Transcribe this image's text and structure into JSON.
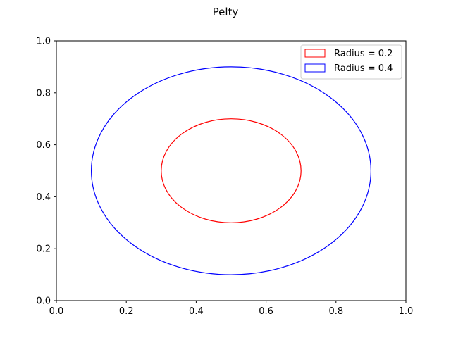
{
  "chart_data": {
    "type": "scatter",
    "title": "Pelty",
    "xlabel": "",
    "ylabel": "",
    "xlim": [
      0.0,
      1.0
    ],
    "ylim": [
      0.0,
      1.0
    ],
    "x_ticks": [
      "0.0",
      "0.2",
      "0.4",
      "0.6",
      "0.8",
      "1.0"
    ],
    "y_ticks": [
      "0.0",
      "0.2",
      "0.4",
      "0.6",
      "0.8",
      "1.0"
    ],
    "grid": false,
    "legend_position": "top-right",
    "series": [
      {
        "name": "Radius = 0.2",
        "shape": "circle",
        "center": [
          0.5,
          0.5
        ],
        "radius": 0.2,
        "color": "#ff0000"
      },
      {
        "name": "Radius = 0.4",
        "shape": "circle",
        "center": [
          0.5,
          0.5
        ],
        "radius": 0.4,
        "color": "#0000ff"
      }
    ]
  }
}
